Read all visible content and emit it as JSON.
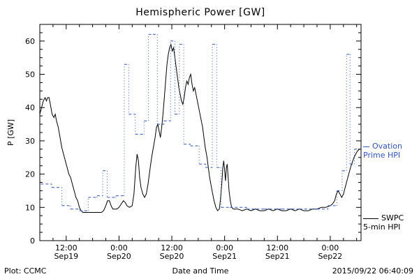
{
  "title": "Hemispheric Power [GW]",
  "footer": {
    "plot_credit": "Plot: CCMC",
    "xlabel": "Date and Time",
    "timestamp": "2015/09/22 06:40:09"
  },
  "legend": {
    "ovation": {
      "line1": "Ovation",
      "line2": "Prime HPI"
    },
    "swpc": {
      "line1": "SWPC",
      "line2": "5-min HPI"
    }
  },
  "colors": {
    "ovation": "#3355bb",
    "swpc": "#000000",
    "background": "#ffffff"
  },
  "chart_data": {
    "type": "line",
    "title": "Hemispheric Power [GW]",
    "xlabel": "Date and Time",
    "ylabel": "P [GW]",
    "ylim": [
      0,
      65
    ],
    "y_ticks": [
      0,
      10,
      20,
      30,
      40,
      50,
      60
    ],
    "x_range": [
      6,
      79
    ],
    "x_units": "hours since 2015/09/19 00:00",
    "x_ticks": [
      {
        "hour": 12,
        "time": "12:00",
        "date": "Sep19"
      },
      {
        "hour": 24,
        "time": "0:00",
        "date": "Sep20"
      },
      {
        "hour": 36,
        "time": "12:00",
        "date": "Sep20"
      },
      {
        "hour": 48,
        "time": "0:00",
        "date": "Sep21"
      },
      {
        "hour": 60,
        "time": "12:00",
        "date": "Sep21"
      },
      {
        "hour": 72,
        "time": "0:00",
        "date": "Sep22"
      }
    ],
    "grid": false,
    "legend_position": "right-outside",
    "series": [
      {
        "name": "SWPC 5-min HPI",
        "color": "#000000",
        "style": "solid",
        "points": [
          [
            6,
            38
          ],
          [
            6.4,
            40
          ],
          [
            6.8,
            42
          ],
          [
            7.2,
            43
          ],
          [
            7.5,
            42
          ],
          [
            7.8,
            43
          ],
          [
            8.1,
            43
          ],
          [
            8.4,
            41
          ],
          [
            8.8,
            38
          ],
          [
            9.2,
            37
          ],
          [
            9.5,
            38
          ],
          [
            9.8,
            36
          ],
          [
            10.2,
            34
          ],
          [
            10.6,
            31
          ],
          [
            11,
            28
          ],
          [
            11.4,
            26
          ],
          [
            11.8,
            24
          ],
          [
            12.2,
            22
          ],
          [
            12.6,
            20
          ],
          [
            13,
            19
          ],
          [
            13.4,
            17
          ],
          [
            13.8,
            15
          ],
          [
            14.2,
            13
          ],
          [
            14.6,
            12
          ],
          [
            15,
            10
          ],
          [
            15.4,
            9
          ],
          [
            15.8,
            8.5
          ],
          [
            17,
            8.5
          ],
          [
            18,
            8.5
          ],
          [
            19,
            8.5
          ],
          [
            20,
            8.5
          ],
          [
            20.5,
            9
          ],
          [
            21,
            10.5
          ],
          [
            21.4,
            12
          ],
          [
            21.8,
            12
          ],
          [
            22.2,
            10.5
          ],
          [
            22.6,
            9.5
          ],
          [
            23.5,
            9.5
          ],
          [
            24,
            10
          ],
          [
            24.5,
            11
          ],
          [
            25,
            12
          ],
          [
            25.4,
            11.5
          ],
          [
            25.8,
            10.5
          ],
          [
            26.4,
            10
          ],
          [
            27,
            10.5
          ],
          [
            27.4,
            14
          ],
          [
            27.8,
            22
          ],
          [
            28.1,
            26
          ],
          [
            28.4,
            24
          ],
          [
            28.7,
            19
          ],
          [
            29,
            16
          ],
          [
            29.4,
            14
          ],
          [
            29.8,
            13
          ],
          [
            30.2,
            14
          ],
          [
            30.6,
            17
          ],
          [
            31,
            21
          ],
          [
            31.4,
            25
          ],
          [
            31.8,
            28
          ],
          [
            32.2,
            31
          ],
          [
            32.5,
            34
          ],
          [
            32.8,
            35
          ],
          [
            33.1,
            33
          ],
          [
            33.4,
            31
          ],
          [
            33.7,
            34
          ],
          [
            34,
            38
          ],
          [
            34.3,
            43
          ],
          [
            34.6,
            48
          ],
          [
            34.9,
            53
          ],
          [
            35.2,
            56
          ],
          [
            35.5,
            58
          ],
          [
            35.8,
            59
          ],
          [
            36.1,
            57
          ],
          [
            36.4,
            58
          ],
          [
            36.7,
            55
          ],
          [
            37,
            52
          ],
          [
            37.3,
            49
          ],
          [
            37.6,
            46
          ],
          [
            37.9,
            44
          ],
          [
            38.2,
            42
          ],
          [
            38.5,
            41
          ],
          [
            38.8,
            43
          ],
          [
            39.1,
            46
          ],
          [
            39.4,
            48
          ],
          [
            39.7,
            47
          ],
          [
            40,
            49
          ],
          [
            40.3,
            50
          ],
          [
            40.6,
            47
          ],
          [
            40.9,
            45
          ],
          [
            41.2,
            46
          ],
          [
            41.5,
            44
          ],
          [
            41.8,
            42
          ],
          [
            42.1,
            40
          ],
          [
            42.4,
            38
          ],
          [
            42.7,
            36
          ],
          [
            43,
            34
          ],
          [
            43.3,
            31
          ],
          [
            43.6,
            28
          ],
          [
            44,
            25
          ],
          [
            44.3,
            22
          ],
          [
            44.6,
            19
          ],
          [
            45,
            16
          ],
          [
            45.3,
            14
          ],
          [
            45.6,
            12
          ],
          [
            46,
            10
          ],
          [
            46.4,
            9
          ],
          [
            46.8,
            9.5
          ],
          [
            47.1,
            13
          ],
          [
            47.4,
            18
          ],
          [
            47.6,
            22
          ],
          [
            47.8,
            24
          ],
          [
            48,
            21
          ],
          [
            48.2,
            18
          ],
          [
            48.4,
            22
          ],
          [
            48.6,
            23
          ],
          [
            48.8,
            19
          ],
          [
            49,
            15
          ],
          [
            49.3,
            12
          ],
          [
            49.6,
            10
          ],
          [
            50,
            9.5
          ],
          [
            51,
            9.5
          ],
          [
            52,
            9
          ],
          [
            53,
            9.5
          ],
          [
            54,
            9
          ],
          [
            55,
            9.5
          ],
          [
            56,
            9
          ],
          [
            57,
            9
          ],
          [
            58,
            9.5
          ],
          [
            59,
            9
          ],
          [
            60,
            9.5
          ],
          [
            61,
            9
          ],
          [
            62,
            9
          ],
          [
            63,
            9.5
          ],
          [
            64,
            9
          ],
          [
            65,
            9.5
          ],
          [
            66,
            9
          ],
          [
            67,
            9
          ],
          [
            68,
            9.5
          ],
          [
            69,
            9.5
          ],
          [
            70,
            10
          ],
          [
            71,
            10
          ],
          [
            72,
            10.5
          ],
          [
            72.5,
            11
          ],
          [
            73,
            12
          ],
          [
            73.4,
            14
          ],
          [
            73.8,
            15
          ],
          [
            74.2,
            14
          ],
          [
            74.6,
            13
          ],
          [
            75,
            14
          ],
          [
            75.4,
            16
          ],
          [
            75.8,
            18
          ],
          [
            76.2,
            20
          ],
          [
            76.6,
            22
          ],
          [
            77,
            23.5
          ],
          [
            77.4,
            25
          ],
          [
            77.8,
            26
          ],
          [
            78.2,
            27
          ],
          [
            78.7,
            27.5
          ]
        ]
      },
      {
        "name": "Ovation Prime HPI",
        "color": "#3355bb",
        "style": "step-dashed",
        "segments": [
          [
            6.2,
            8.7,
            17
          ],
          [
            8.7,
            11,
            16
          ],
          [
            11,
            13,
            10.5
          ],
          [
            13,
            15,
            9.5
          ],
          [
            15,
            17,
            9
          ],
          [
            17,
            19,
            13
          ],
          [
            19,
            20.3,
            13.5
          ],
          [
            20.3,
            21.3,
            21
          ],
          [
            21.3,
            23.3,
            13
          ],
          [
            23.3,
            25.2,
            13.5
          ],
          [
            25.2,
            26.2,
            53
          ],
          [
            26.2,
            27.7,
            38
          ],
          [
            27.7,
            29.7,
            32
          ],
          [
            29.7,
            30.7,
            36
          ],
          [
            30.7,
            31.7,
            62
          ],
          [
            31.7,
            32.7,
            62
          ],
          [
            32.7,
            34.2,
            35
          ],
          [
            34.2,
            35.7,
            36
          ],
          [
            35.7,
            36.7,
            60
          ],
          [
            36.7,
            37.7,
            38
          ],
          [
            37.7,
            38.7,
            59
          ],
          [
            38.7,
            40.2,
            29
          ],
          [
            40.2,
            42.2,
            28.5
          ],
          [
            42.2,
            43.7,
            23
          ],
          [
            43.7,
            45.2,
            22
          ],
          [
            45.2,
            46.2,
            59
          ],
          [
            46.2,
            47.2,
            22
          ],
          [
            47.2,
            49.2,
            10
          ],
          [
            49.2,
            53,
            10
          ],
          [
            53,
            57,
            9.5
          ],
          [
            57,
            61,
            9.5
          ],
          [
            61,
            65,
            9.5
          ],
          [
            65,
            69,
            9.5
          ],
          [
            69,
            71.5,
            9.5
          ],
          [
            71.5,
            73.5,
            10.5
          ],
          [
            73.5,
            74.7,
            15
          ],
          [
            74.7,
            75.7,
            21
          ],
          [
            75.7,
            76.5,
            56
          ],
          [
            76.5,
            77.5,
            23
          ],
          [
            77.5,
            78.7,
            27.5
          ]
        ]
      }
    ]
  }
}
